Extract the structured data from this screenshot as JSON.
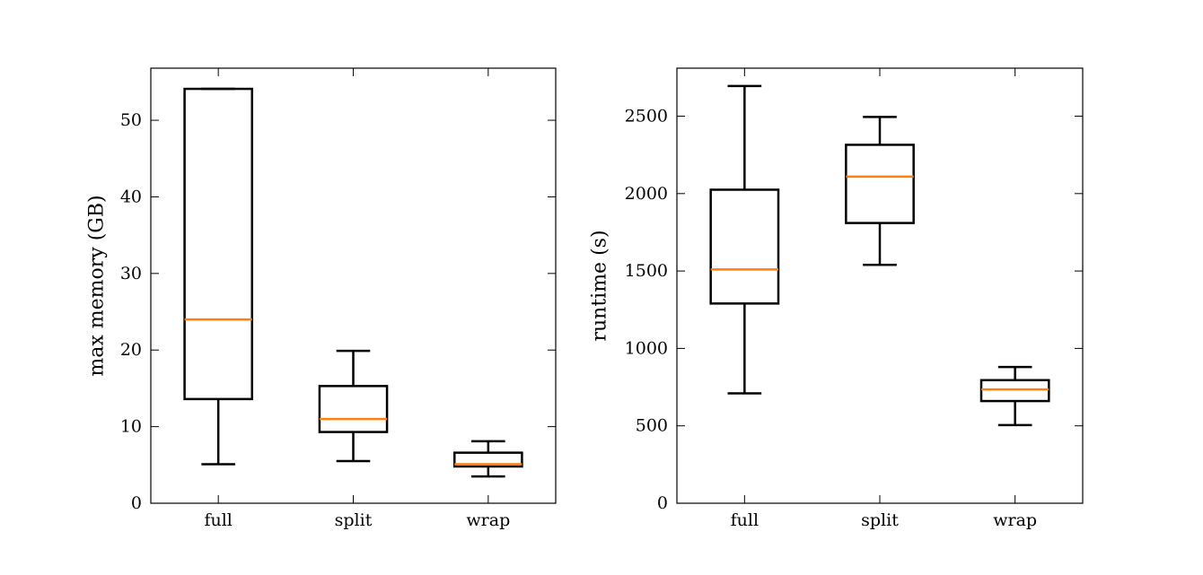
{
  "chart_data": [
    {
      "type": "box",
      "title": "",
      "xlabel": "",
      "ylabel": "max memory (GB)",
      "ylim": [
        0,
        56.8
      ],
      "yticks": [
        0,
        10,
        20,
        30,
        40,
        50
      ],
      "categories": [
        "full",
        "split",
        "wrap"
      ],
      "boxes": [
        {
          "category": "full",
          "whisker_low": 5.1,
          "q1": 13.6,
          "median": 24.0,
          "q3": 54.1,
          "whisker_high": 54.1
        },
        {
          "category": "split",
          "whisker_low": 5.5,
          "q1": 9.3,
          "median": 11.0,
          "q3": 15.3,
          "whisker_high": 19.9
        },
        {
          "category": "wrap",
          "whisker_low": 3.5,
          "q1": 4.8,
          "median": 5.1,
          "q3": 6.6,
          "whisker_high": 8.1
        }
      ],
      "grid": false,
      "box_color": "#000000",
      "median_color": "#ff7f0e"
    },
    {
      "type": "box",
      "title": "",
      "xlabel": "",
      "ylabel": "runtime (s)",
      "ylim": [
        0,
        2810
      ],
      "yticks": [
        0,
        500,
        1000,
        1500,
        2000,
        2500
      ],
      "categories": [
        "full",
        "split",
        "wrap"
      ],
      "boxes": [
        {
          "category": "full",
          "whisker_low": 710,
          "q1": 1290,
          "median": 1510,
          "q3": 2025,
          "whisker_high": 2695
        },
        {
          "category": "split",
          "whisker_low": 1540,
          "q1": 1810,
          "median": 2110,
          "q3": 2315,
          "whisker_high": 2495
        },
        {
          "category": "wrap",
          "whisker_low": 505,
          "q1": 660,
          "median": 735,
          "q3": 795,
          "whisker_high": 880
        }
      ],
      "grid": false,
      "box_color": "#000000",
      "median_color": "#ff7f0e"
    }
  ]
}
